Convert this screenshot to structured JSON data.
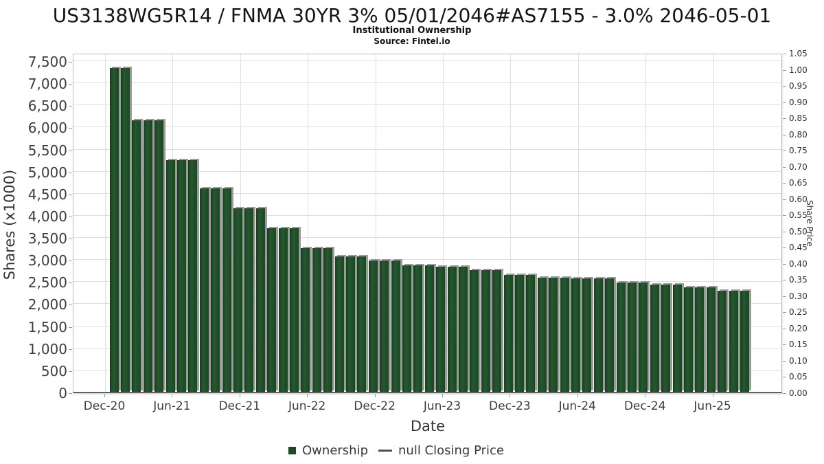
{
  "header": {
    "title": "US3138WG5R14 / FNMA 30YR 3% 05/01/2046#AS7155 - 3.0% 2046-05-01",
    "subtitle": "Institutional Ownership",
    "source": "Source: Fintel.io"
  },
  "colors": {
    "bar_green": "#1d4a24",
    "bar_shadow": "#9b9b9b",
    "grid": "#e0e0e0",
    "tick_text": "#3c3c3c"
  },
  "chart_data": {
    "type": "bar",
    "title": "US3138WG5R14 / FNMA 30YR 3% 05/01/2046#AS7155 - 3.0% 2046-05-01",
    "subtitle": "Institutional Ownership",
    "source": "Source: Fintel.io",
    "grid": true,
    "legend_position": "bottom-center",
    "x_axis": {
      "label": "Date",
      "tick_labels": [
        "Dec-20",
        "Jun-21",
        "Dec-21",
        "Jun-22",
        "Dec-22",
        "Jun-23",
        "Dec-23",
        "Jun-24",
        "Dec-24",
        "Jun-25"
      ],
      "ticks_every_n_bars": 6
    },
    "y_axis": {
      "label": "Shares (x1000)",
      "tick_labels": [
        "0",
        "500",
        "1,000",
        "1,500",
        "2,000",
        "2,500",
        "3,000",
        "3,500",
        "4,000",
        "4,500",
        "5,000",
        "5,500",
        "6,000",
        "6,500",
        "7,000",
        "7,500"
      ],
      "tick_values": [
        0,
        500,
        1000,
        1500,
        2000,
        2500,
        3000,
        3500,
        4000,
        4500,
        5000,
        5500,
        6000,
        6500,
        7000,
        7500
      ],
      "range": [
        0,
        7670
      ]
    },
    "y2_axis": {
      "label": "Share Price",
      "tick_labels": [
        "0.00",
        "0.05",
        "0.10",
        "0.15",
        "0.20",
        "0.25",
        "0.30",
        "0.35",
        "0.40",
        "0.45",
        "0.50",
        "0.55",
        "0.60",
        "0.65",
        "0.70",
        "0.75",
        "0.80",
        "0.85",
        "0.90",
        "0.95",
        "1.00",
        "1.05"
      ],
      "range": [
        0,
        1.05
      ]
    },
    "series": [
      {
        "name": "Ownership",
        "type": "bar",
        "color": "#1d4a24",
        "values": [
          7330,
          7330,
          6150,
          6150,
          6150,
          5250,
          5250,
          5250,
          4600,
          4600,
          4600,
          4160,
          4160,
          4160,
          3710,
          3710,
          3710,
          3260,
          3260,
          3260,
          3070,
          3070,
          3070,
          2970,
          2970,
          2970,
          2870,
          2870,
          2870,
          2830,
          2830,
          2830,
          2760,
          2760,
          2760,
          2640,
          2640,
          2640,
          2580,
          2580,
          2580,
          2560,
          2560,
          2560,
          2560,
          2480,
          2480,
          2480,
          2420,
          2420,
          2420,
          2370,
          2370,
          2370,
          2280,
          2280,
          2280
        ]
      },
      {
        "name": "null Closing Price",
        "type": "line",
        "color": "#4f4f4f",
        "values": []
      }
    ]
  }
}
